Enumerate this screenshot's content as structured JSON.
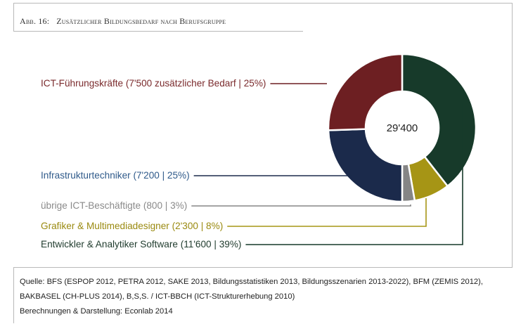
{
  "figure": {
    "label": "Abb. 16:",
    "title": "Zusätzlicher Bildungsbedarf nach Berufsgruppe"
  },
  "chart_data": {
    "type": "pie",
    "variant": "donut",
    "total_label": "29'400",
    "slices": [
      {
        "name": "Entwickler & Analytiker Software",
        "value": 11600,
        "percent": 39,
        "label": "Entwickler & Analytiker Software (11'600 | 39%)",
        "color": "#173a2a"
      },
      {
        "name": "Grafiker & Multimediadesigner",
        "value": 2300,
        "percent": 8,
        "label": "Grafiker & Multimediadesigner (2'300 | 8%)",
        "color": "#a69515"
      },
      {
        "name": "übrige ICT-Beschäftigte",
        "value": 800,
        "percent": 3,
        "label": "übrige ICT-Beschäftigte (800 | 3%)",
        "color": "#858585"
      },
      {
        "name": "Infrastrukturtechniker",
        "value": 7200,
        "percent": 25,
        "label": "Infrastrukturtechniker (7'200 | 25%)",
        "color": "#1b2a4b"
      },
      {
        "name": "ICT-Führungskräfte",
        "value": 7500,
        "percent": 25,
        "label": "ICT-Führungskräfte (7'500 zusätzlicher Bedarf | 25%)",
        "color": "#6d1f22"
      }
    ],
    "label_colors": {
      "Entwickler & Analytiker Software": "#1f3b2d",
      "Grafiker & Multimediadesigner": "#9a8a10",
      "übrige ICT-Beschäftigte": "#8a8a8a",
      "Infrastrukturtechniker": "#2f5a8a",
      "ICT-Führungskräfte": "#7a2a2c"
    }
  },
  "source": {
    "quelle_prefix": "Quelle:",
    "quelle_text": "BFS (ESPOP 2012, PETRA 2012, SAKE 2013, Bildungsstatistiken 2013, Bildungsszenarien 2013-2022), BFM (ZEMIS 2012), BAKBASEL (CH-PLUS 2014), B,S,S. / ICT-BBCH (ICT-Strukturerhebung 2010)",
    "credit_prefix": "Berechnungen & Darstellung:",
    "credit_text": "Econlab 2014"
  }
}
